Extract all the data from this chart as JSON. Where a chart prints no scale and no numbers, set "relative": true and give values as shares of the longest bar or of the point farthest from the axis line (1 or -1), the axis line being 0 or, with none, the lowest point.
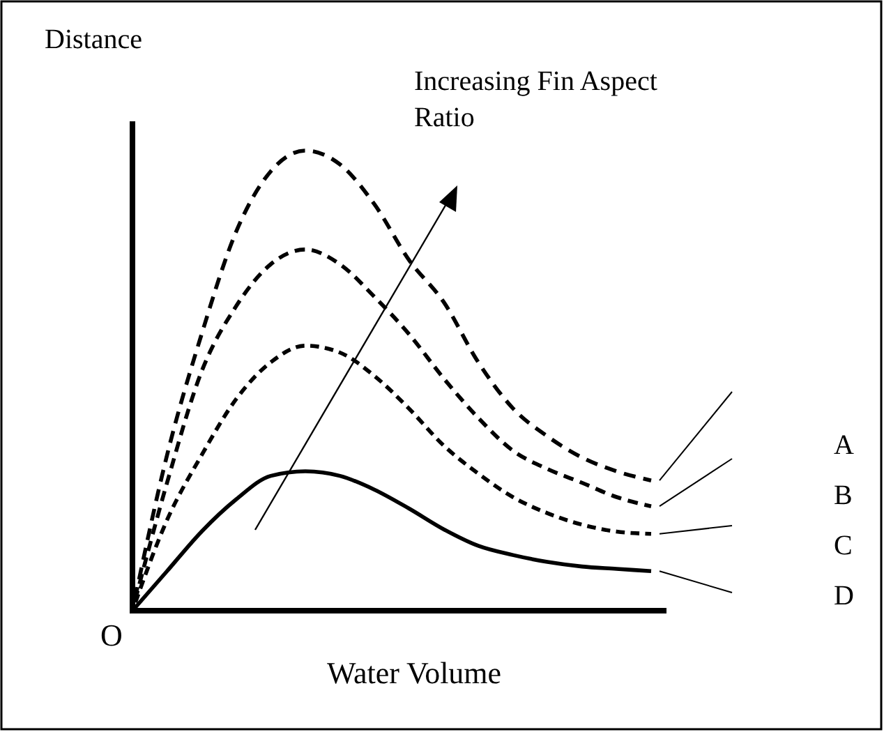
{
  "chart_data": {
    "type": "line",
    "relative": true,
    "xlabel": "Water Volume",
    "ylabel": "Distance",
    "annotations": [
      "Increasing Fin Aspect Ratio",
      "O"
    ],
    "categories": [
      null,
      null,
      null,
      null,
      null,
      null,
      null,
      null,
      null,
      null,
      null,
      null,
      null,
      null,
      null,
      null
    ],
    "series": [
      {
        "name": "A",
        "color": "#000000",
        "line_style": "dashed",
        "values": [
          0,
          0.338,
          0.601,
          0.824,
          0.955,
          1,
          0.97,
          0.883,
          0.762,
          0.671,
          0.54,
          0.44,
          0.379,
          0.333,
          0.303,
          0.283
        ]
      },
      {
        "name": "B",
        "color": "#000000",
        "line_style": "dashed",
        "values": [
          0,
          0.278,
          0.52,
          0.662,
          0.753,
          0.785,
          0.753,
          0.682,
          0.601,
          0.505,
          0.419,
          0.348,
          0.308,
          0.278,
          0.247,
          0.227
        ]
      },
      {
        "name": "C",
        "color": "#000000",
        "line_style": "dashed",
        "values": [
          0,
          0.197,
          0.338,
          0.46,
          0.54,
          0.576,
          0.561,
          0.51,
          0.439,
          0.359,
          0.298,
          0.247,
          0.212,
          0.187,
          0.172,
          0.167
        ]
      },
      {
        "name": "D",
        "color": "#000000",
        "line_style": "solid",
        "values": [
          0,
          0.086,
          0.172,
          0.242,
          0.293,
          0.303,
          0.293,
          0.263,
          0.222,
          0.177,
          0.141,
          0.121,
          0.106,
          0.096,
          0.091,
          0.086
        ]
      }
    ]
  }
}
